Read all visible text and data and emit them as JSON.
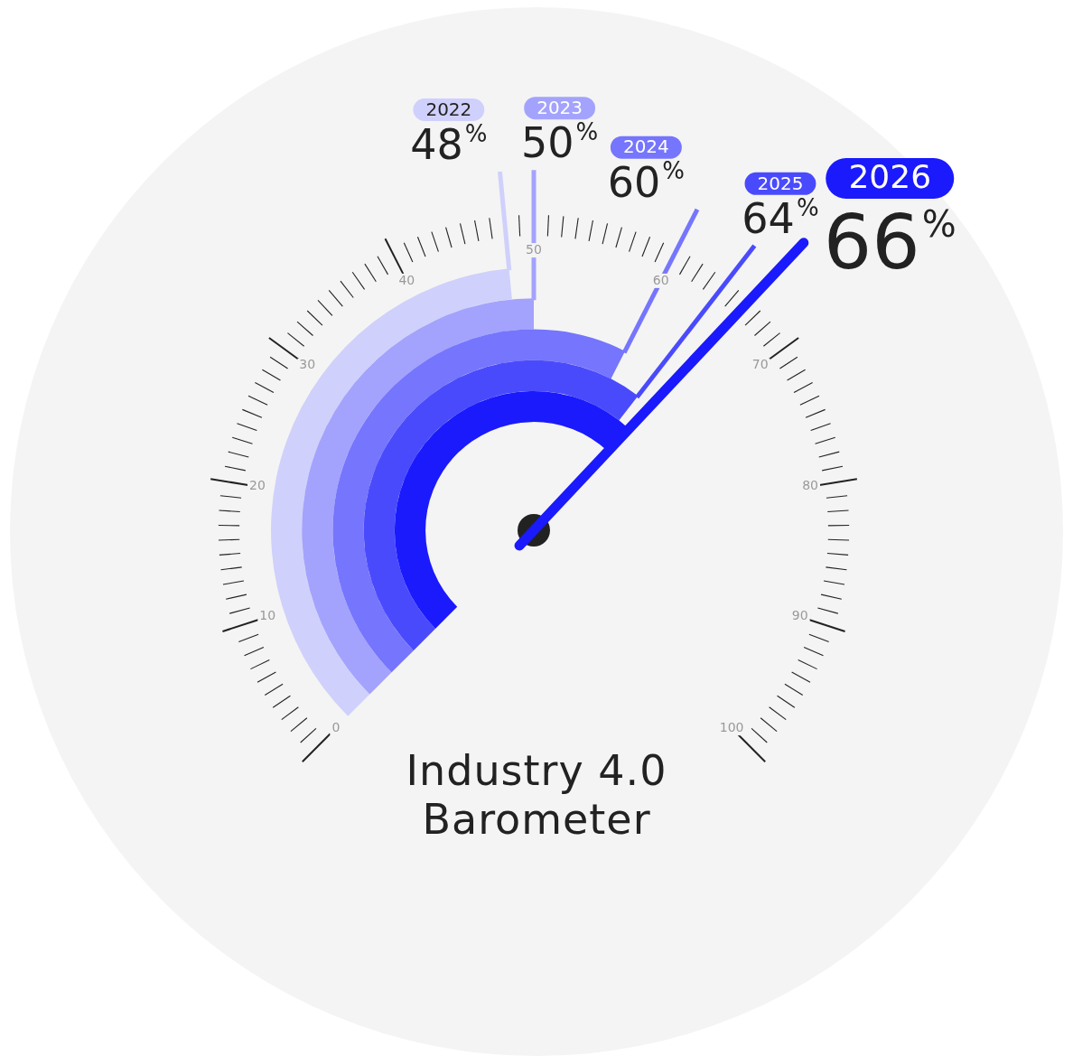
{
  "chart_data": {
    "type": "other",
    "title": "Industry 4.0\nBarometer",
    "categories": [
      "2022",
      "2023",
      "2024",
      "2025",
      "2026"
    ],
    "values": [
      48,
      50,
      60,
      64,
      66
    ],
    "colors": [
      "#d0d0fc",
      "#a3a3fd",
      "#7575fd",
      "#4a4afd",
      "#1a1afd"
    ],
    "value_labels": [
      "48%",
      "50%",
      "60%",
      "64%",
      "66%"
    ],
    "annotations": [
      "0",
      "10",
      "20",
      "30",
      "40",
      "50",
      "60",
      "70",
      "80",
      "90",
      "100"
    ]
  }
}
